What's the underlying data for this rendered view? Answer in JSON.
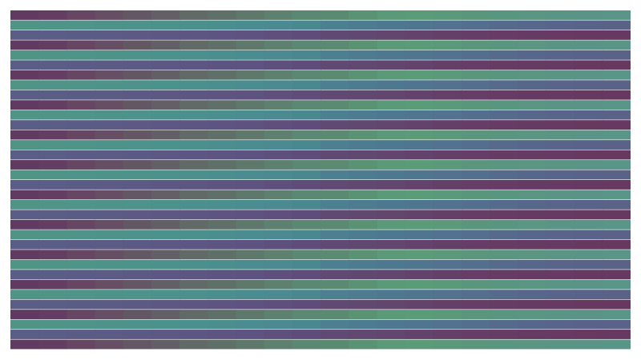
{
  "chart_data": {
    "type": "heatmap",
    "title": "",
    "xlabel": "",
    "ylabel": "",
    "columns": 22,
    "rows": 34,
    "grid": false,
    "legend": "none",
    "row_pattern": [
      "A",
      "B",
      "C"
    ],
    "row_colors": {
      "A": [
        "#613a62",
        "#643d63",
        "#664663",
        "#664f64",
        "#645764",
        "#635f66",
        "#626a68",
        "#5f7069",
        "#5e786c",
        "#5d806f",
        "#5b8872",
        "#5a8a72",
        "#5a9274",
        "#5a9a78",
        "#5b9c78",
        "#5a9a7a",
        "#5a967c",
        "#599680",
        "#5a9682",
        "#5a9484",
        "#5a9486",
        "#5a9688"
      ],
      "B": [
        "#509486",
        "#509488",
        "#4f9488",
        "#4e938a",
        "#4d928b",
        "#4c928c",
        "#4b908d",
        "#4b8e8e",
        "#4a8c8f",
        "#4a8a90",
        "#4a8890",
        "#4c8090",
        "#4d7c90",
        "#4e7890",
        "#50758f",
        "#52728f",
        "#546e8d",
        "#566a8c",
        "#57678b",
        "#58648a",
        "#596389",
        "#5a6288"
      ],
      "C": [
        "#5a5e86",
        "#5a5d86",
        "#5b5c85",
        "#5b5b85",
        "#5c5a84",
        "#5c5883",
        "#5d5682",
        "#5d5481",
        "#5e5280",
        "#5f4f7d",
        "#604c7a",
        "#604a74",
        "#614871",
        "#62466e",
        "#63426b",
        "#643f68",
        "#653d66",
        "#663b64",
        "#663b63",
        "#663a62",
        "#673961",
        "#673860"
      ]
    }
  }
}
